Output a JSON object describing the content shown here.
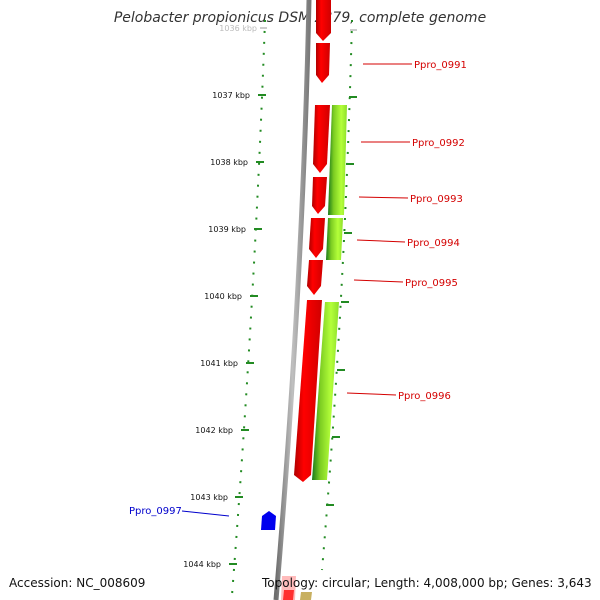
{
  "title": "Pelobacter propionicus DSM 2379, complete genome",
  "footer": {
    "accession": "Accession: NC_008609",
    "topology": "Topology: circular; Length: 4,008,000 bp; Genes: 3,643"
  },
  "ticks": [
    "1036 kbp",
    "1037 kbp",
    "1038 kbp",
    "1039 kbp",
    "1040 kbp",
    "1041 kbp",
    "1042 kbp",
    "1043 kbp",
    "1044 kbp"
  ],
  "genes": [
    {
      "label": "Ppro_0991",
      "color": "#d40000"
    },
    {
      "label": "Ppro_0992",
      "color": "#d40000"
    },
    {
      "label": "Ppro_0993",
      "color": "#d40000"
    },
    {
      "label": "Ppro_0994",
      "color": "#d40000"
    },
    {
      "label": "Ppro_0995",
      "color": "#d40000"
    },
    {
      "label": "Ppro_0996",
      "color": "#d40000"
    },
    {
      "label": "Ppro_0997",
      "color": "#0000cc"
    }
  ],
  "colors": {
    "forward_gene": "#ff0000",
    "reverse_gene": "#0000ff",
    "annotation_light": "#aaff22",
    "annotation_dark": "#228b22",
    "backbone": "#909090",
    "dotted_track": "#228b22"
  }
}
